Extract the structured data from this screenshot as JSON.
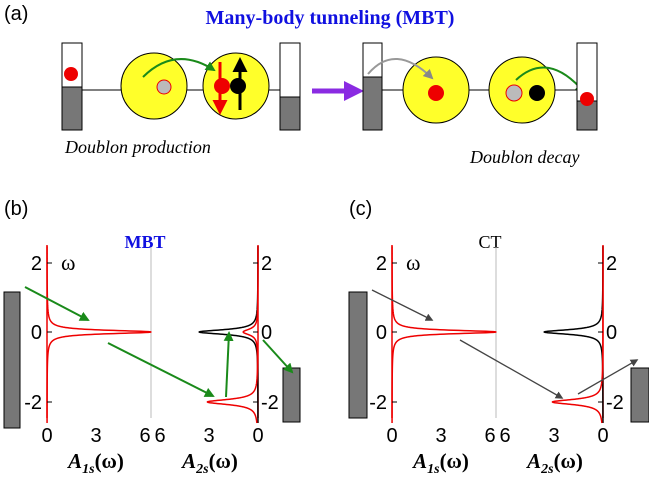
{
  "panel_a": {
    "label": "(a)",
    "title": "Many-body tunneling (MBT)",
    "caption_left": "Doublon production",
    "caption_right": "Doublon decay"
  },
  "panels": [
    {
      "label": "(b)",
      "title": "MBT",
      "omega": "ω",
      "yticks_left": [
        "2",
        "0",
        "-2"
      ],
      "yticks_right": [
        "2",
        "0",
        "-2"
      ],
      "xticks_left": [
        "0",
        "3",
        "6"
      ],
      "xticks_right": [
        "6",
        "3",
        "0"
      ],
      "xlabel_left": {
        "symbol": "A",
        "sub": "1s",
        "arg": "(ω)"
      },
      "xlabel_right": {
        "symbol": "A",
        "sub": "2s",
        "arg": "(ω)"
      }
    },
    {
      "label": "(c)",
      "title": "CT",
      "omega": "ω",
      "yticks_left": [
        "2",
        "0",
        "-2"
      ],
      "yticks_right": [
        "2",
        "0",
        "-2"
      ],
      "xticks_left": [
        "0",
        "3",
        "6"
      ],
      "xticks_right": [
        "6",
        "3",
        "0"
      ],
      "xlabel_left": {
        "symbol": "A",
        "sub": "1s",
        "arg": "(ω)"
      },
      "xlabel_right": {
        "symbol": "A",
        "sub": "2s",
        "arg": "(ω)"
      }
    }
  ]
}
